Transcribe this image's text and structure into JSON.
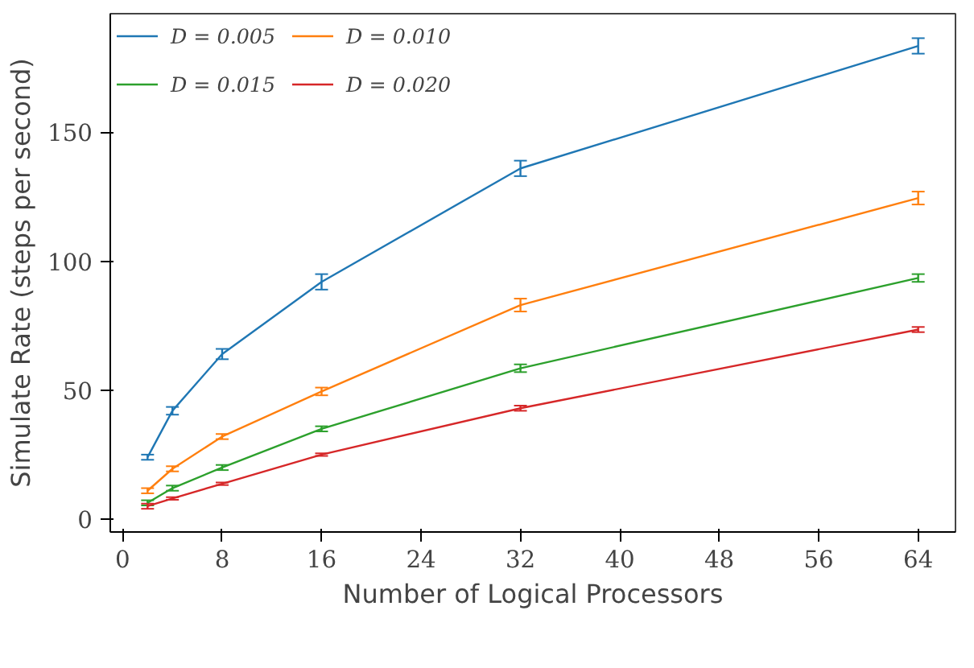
{
  "chart_data": {
    "type": "line",
    "xlabel": "Number of Logical Processors",
    "ylabel": "Simulate Rate (steps per second)",
    "x": [
      2,
      4,
      8,
      16,
      32,
      64
    ],
    "xlim": [
      -1,
      67
    ],
    "xticks": [
      0,
      8,
      16,
      24,
      32,
      40,
      48,
      56,
      64
    ],
    "ylim": [
      -5,
      196
    ],
    "yticks": [
      0,
      50,
      100,
      150
    ],
    "grid": false,
    "legend": "top left",
    "marker": "none",
    "line_style": "solid",
    "series": [
      {
        "name": "D = 0.005",
        "color": "#1f77b4",
        "values": [
          24,
          42,
          64,
          92,
          136,
          183.5
        ],
        "errors": [
          1,
          1.5,
          2,
          3,
          3,
          3
        ]
      },
      {
        "name": "D = 0.010",
        "color": "#ff7f0e",
        "values": [
          11,
          19.5,
          32,
          49.5,
          83,
          124.5
        ],
        "errors": [
          1,
          1,
          1,
          1.5,
          2.5,
          2.5
        ]
      },
      {
        "name": "D = 0.015",
        "color": "#2ca02c",
        "values": [
          6.3,
          12,
          20,
          35,
          58.5,
          93.5
        ],
        "errors": [
          1,
          1,
          1,
          1,
          1.5,
          1.5
        ]
      },
      {
        "name": "D = 0.020",
        "color": "#d62728",
        "values": [
          5,
          8,
          13.7,
          25,
          43,
          73.5
        ],
        "errors": [
          1,
          0.5,
          0.5,
          0.5,
          1,
          1
        ]
      }
    ]
  }
}
